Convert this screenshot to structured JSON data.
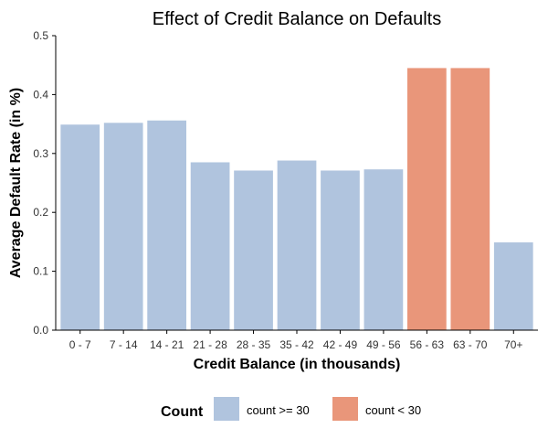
{
  "chart_data": {
    "type": "bar",
    "title": "Effect of Credit Balance on Defaults",
    "xlabel": "Credit Balance (in thousands)",
    "ylabel": "Average Default Rate (in %)",
    "ylim": [
      0,
      0.5
    ],
    "yticks": [
      "0.0",
      "0.1",
      "0.2",
      "0.3",
      "0.4",
      "0.5"
    ],
    "grid": false,
    "categories": [
      "0 - 7",
      "7 - 14",
      "14 - 21",
      "21 - 28",
      "28 - 35",
      "35 - 42",
      "42 - 49",
      "49 - 56",
      "56 - 63",
      "63 - 70",
      "70+"
    ],
    "values": [
      0.349,
      0.352,
      0.356,
      0.285,
      0.271,
      0.288,
      0.271,
      0.273,
      0.445,
      0.445,
      0.149
    ],
    "groups": [
      "count >= 30",
      "count >= 30",
      "count >= 30",
      "count >= 30",
      "count >= 30",
      "count >= 30",
      "count >= 30",
      "count >= 30",
      "count < 30",
      "count < 30",
      "count >= 30"
    ],
    "legend": {
      "title": "Count",
      "position": "bottom",
      "items": [
        {
          "label": "count >= 30",
          "color": "#b0c4de"
        },
        {
          "label": "count < 30",
          "color": "#e9967a"
        }
      ]
    }
  }
}
